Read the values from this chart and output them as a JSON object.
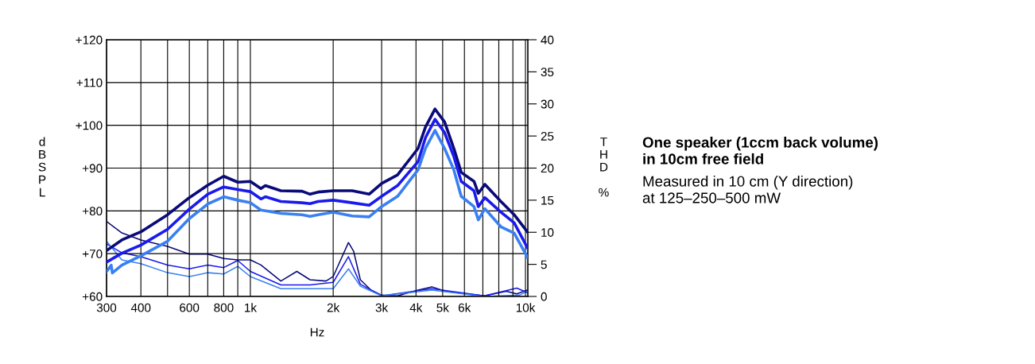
{
  "chart_data": {
    "type": "line",
    "title": "One speaker (1ccm back volume)\nin 10cm free field",
    "subtitle": "Measured in 10 cm (Y direction)\nat 125–250–500 mW",
    "xlabel": "Hz",
    "ylabel": "dBSPL",
    "y2label": "THD %",
    "log": "x",
    "grid": true,
    "legend": false,
    "marker": "none",
    "line_style": "solid",
    "xlim": [
      300,
      10200
    ],
    "xticks": [
      300,
      400,
      {
        "value": 500,
        "label": null
      },
      600,
      {
        "value": 700,
        "label": null
      },
      800,
      {
        "value": 900,
        "label": null
      },
      {
        "value": 1000,
        "label": "1k"
      },
      {
        "value": 2000,
        "label": "2k"
      },
      {
        "value": 3000,
        "label": "3k"
      },
      {
        "value": 4000,
        "label": "4k"
      },
      {
        "value": 5000,
        "label": "5k"
      },
      {
        "value": 6000,
        "label": "6k"
      },
      {
        "value": 7000,
        "label": null
      },
      {
        "value": 8000,
        "label": null
      },
      {
        "value": 9000,
        "label": null
      },
      {
        "value": 10000,
        "label": "10k"
      }
    ],
    "ylim": [
      60,
      120
    ],
    "yticks": [
      {
        "value": 60,
        "label": "+60"
      },
      {
        "value": 70,
        "label": "+70"
      },
      {
        "value": 80,
        "label": "+80"
      },
      {
        "value": 90,
        "label": "+90"
      },
      {
        "value": 100,
        "label": "+100"
      },
      {
        "value": 110,
        "label": "+110"
      },
      {
        "value": 120,
        "label": "+120"
      }
    ],
    "y2lim": [
      0,
      40
    ],
    "y2ticks": [
      0,
      5,
      10,
      15,
      20,
      25,
      30,
      35,
      40
    ],
    "series": [
      {
        "color": "#0a0a78",
        "x": [
          300,
          341,
          400,
          500,
          600,
          700,
          800,
          900,
          1000,
          1092,
          1134,
          1291,
          1542,
          1648,
          1763,
          2000,
          2345,
          2702,
          3000,
          3427,
          4070,
          4330,
          4690,
          5080,
          5490,
          5840,
          6500,
          6740,
          7120,
          8140,
          9100,
          10160
        ],
        "values": [
          70.7,
          73.2,
          75.1,
          79.1,
          83.1,
          86.0,
          88.1,
          86.7,
          86.9,
          85.2,
          85.9,
          84.7,
          84.6,
          83.9,
          84.4,
          84.7,
          84.7,
          83.9,
          86.4,
          88.4,
          94.6,
          99.6,
          103.8,
          100.8,
          94.6,
          89.0,
          86.9,
          84.1,
          86.2,
          82.2,
          79.1,
          75.1
        ]
      },
      {
        "color": "#1a1aee",
        "x": [
          300,
          341,
          400,
          500,
          600,
          700,
          800,
          900,
          1000,
          1092,
          1134,
          1291,
          1542,
          1648,
          1763,
          2000,
          2345,
          2702,
          3000,
          3427,
          4070,
          4330,
          4690,
          5080,
          5490,
          5840,
          6500,
          6740,
          7120,
          8140,
          9100,
          10160
        ],
        "values": [
          68.0,
          70.1,
          72.0,
          75.7,
          80.4,
          83.9,
          85.6,
          85.0,
          84.5,
          82.8,
          83.3,
          82.2,
          81.9,
          81.7,
          82.2,
          82.5,
          81.9,
          81.3,
          83.4,
          85.9,
          91.5,
          97.1,
          101.4,
          98.3,
          92.7,
          86.9,
          84.7,
          81.0,
          83.1,
          79.7,
          77.2,
          71.4
        ]
      },
      {
        "color": "#3a80f2",
        "x": [
          300,
          312,
          315,
          341,
          400,
          500,
          600,
          700,
          800,
          900,
          1000,
          1092,
          1291,
          1542,
          1648,
          1763,
          2000,
          2345,
          2702,
          3000,
          3427,
          4070,
          4330,
          4690,
          5080,
          5490,
          5840,
          6500,
          6740,
          7120,
          8140,
          9100,
          10160
        ],
        "values": [
          65.8,
          67.3,
          65.5,
          67.3,
          69.5,
          72.9,
          78.2,
          81.6,
          83.3,
          82.5,
          81.9,
          80.2,
          79.4,
          79.1,
          78.7,
          79.1,
          79.7,
          78.8,
          78.6,
          81.0,
          83.4,
          89.6,
          94.6,
          98.8,
          94.6,
          89.6,
          83.4,
          81.0,
          77.9,
          80.5,
          76.3,
          74.8,
          69.2
        ]
      },
      {
        "color": "#0a0a78",
        "axis": "y2",
        "x": [
          300,
          341,
          400,
          500,
          600,
          700,
          800,
          900,
          1000,
          1092,
          1291,
          1475,
          1648,
          1884,
          2000,
          2273,
          2375,
          2511,
          2745,
          3000,
          3427,
          4070,
          4570,
          5110,
          6140,
          7090,
          8510,
          9300,
          10160
        ],
        "values": [
          11.7,
          9.9,
          8.8,
          7.8,
          6.6,
          6.6,
          5.9,
          5.7,
          5.7,
          4.9,
          2.4,
          3.9,
          2.6,
          2.4,
          3.1,
          8.4,
          7.0,
          2.6,
          1.0,
          0.2,
          0.1,
          1.0,
          1.5,
          0.8,
          0.4,
          0.1,
          0.8,
          0.4,
          1.0
        ]
      },
      {
        "color": "#1a1aee",
        "axis": "y2",
        "x": [
          300,
          341,
          400,
          500,
          600,
          700,
          800,
          900,
          1000,
          1291,
          1648,
          2000,
          2273,
          2511,
          3000,
          4570,
          7090,
          9300,
          10160
        ],
        "values": [
          8.2,
          6.8,
          6.2,
          4.9,
          4.3,
          4.9,
          4.5,
          5.6,
          3.9,
          1.8,
          1.8,
          2.2,
          6.2,
          1.9,
          0.1,
          1.2,
          0.1,
          1.3,
          0.6
        ]
      },
      {
        "color": "#3a80f2",
        "axis": "y2",
        "x": [
          300,
          341,
          400,
          500,
          600,
          700,
          800,
          900,
          1000,
          1291,
          1648,
          2000,
          2273,
          2511,
          3000,
          4570,
          7090,
          9510,
          10160
        ],
        "values": [
          8.6,
          5.7,
          5.1,
          3.7,
          3.1,
          3.7,
          3.5,
          4.7,
          3.1,
          1.2,
          1.2,
          1.2,
          4.3,
          1.6,
          0.1,
          1.0,
          0.0,
          0.2,
          0.8
        ]
      }
    ]
  }
}
